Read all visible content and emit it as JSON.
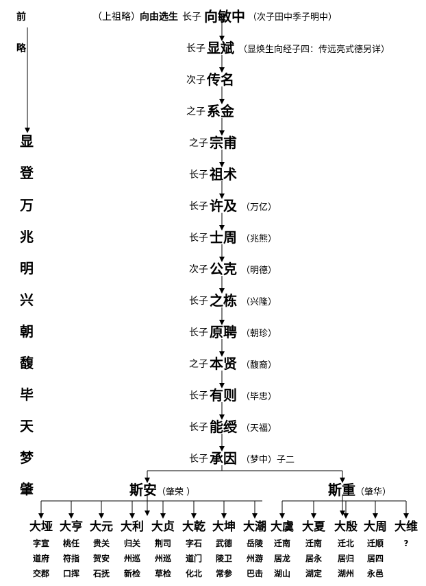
{
  "side": {
    "top": [
      "前",
      "略"
    ],
    "names": [
      "显",
      "登",
      "万",
      "兆",
      "明",
      "兴",
      "朝",
      "馥",
      "毕",
      "天",
      "梦",
      "肇"
    ]
  },
  "top_line": {
    "prefix": "（上祖略）",
    "bold": "向由选生",
    "relation": "长子",
    "name": "向敏中",
    "note": "（次子田中季子明中）"
  },
  "generations": [
    {
      "relation": "长子",
      "name": "显斌",
      "note": "（显焕生向经子四：传远亮式德另详）"
    },
    {
      "relation": "次子",
      "name": "传名",
      "note": ""
    },
    {
      "relation": "之子",
      "name": "系金",
      "note": ""
    },
    {
      "relation": "之子",
      "name": "宗甫",
      "note": ""
    },
    {
      "relation": "长子",
      "name": "祖术",
      "note": ""
    },
    {
      "relation": "长子",
      "name": "许及",
      "note": "（万亿）"
    },
    {
      "relation": "长子",
      "name": "士周",
      "note": "（兆熊）"
    },
    {
      "relation": "次子",
      "name": "公克",
      "note": "（明德）"
    },
    {
      "relation": "长子",
      "name": "之栋",
      "note": "（兴隆）"
    },
    {
      "relation": "长子",
      "name": "原聘",
      "note": "（朝珍）"
    },
    {
      "relation": "之子",
      "name": "本贤",
      "note": "（馥裔）"
    },
    {
      "relation": "长子",
      "name": "有则",
      "note": "（毕忠）"
    },
    {
      "relation": "长子",
      "name": "能绶",
      "note": "（天福）"
    },
    {
      "relation": "长子",
      "name": "承因",
      "note": "（梦中）子二"
    }
  ],
  "branches": {
    "left": {
      "name": "斯安",
      "note": "（肇荣 ）"
    },
    "right": {
      "name": "斯重",
      "note": "（肇华）"
    }
  },
  "children": [
    {
      "name": "大垭",
      "lines": [
        "字宣",
        "道府",
        "交郡"
      ]
    },
    {
      "name": "大亨",
      "lines": [
        "桃任",
        "符指",
        "口挥"
      ]
    },
    {
      "name": "大元",
      "lines": [
        "贵关",
        "贺安",
        "石抚"
      ]
    },
    {
      "name": "大利",
      "lines": [
        "归关",
        "州巡",
        "新检"
      ]
    },
    {
      "name": "大贞",
      "lines": [
        "荆司",
        "州巡",
        "草检"
      ]
    },
    {
      "name": "大乾",
      "lines": [
        "字石",
        "道门",
        "化北"
      ]
    },
    {
      "name": "大坤",
      "lines": [
        "武德",
        "陵卫",
        "常参"
      ]
    },
    {
      "name": "大潮",
      "lines": [
        "岳陵",
        "州游",
        "巴击"
      ]
    },
    {
      "name": "大虞",
      "lines": [
        "迁南",
        "居龙",
        "湖山"
      ]
    },
    {
      "name": "大夏",
      "lines": [
        "迁南",
        "居永",
        "湖定"
      ]
    },
    {
      "name": "大殷",
      "lines": [
        "迁北",
        "居归",
        "湖州"
      ]
    },
    {
      "name": "大周",
      "lines": [
        "迁顺",
        "居四",
        "永邑"
      ]
    },
    {
      "name": "大维",
      "lines": [
        "?"
      ]
    }
  ]
}
